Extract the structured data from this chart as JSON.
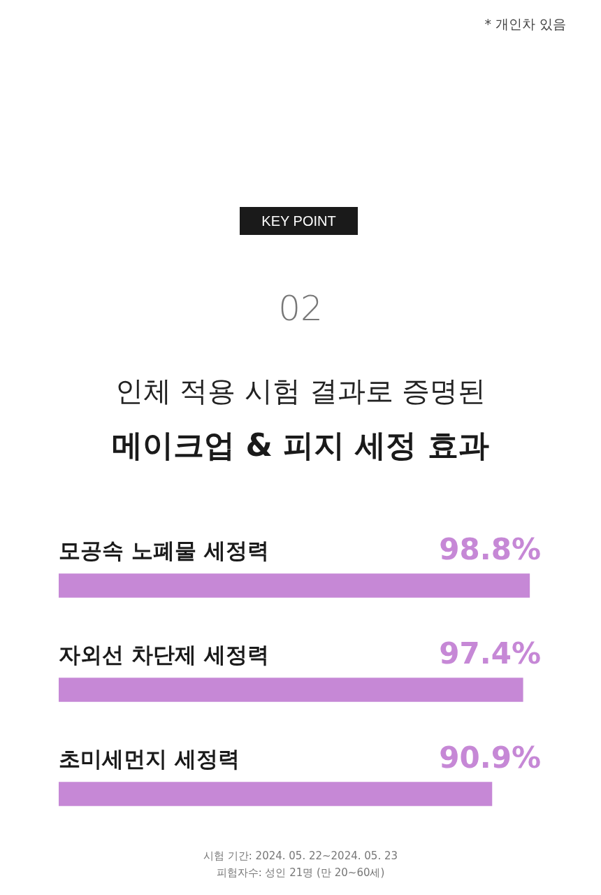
{
  "chart_data": {
    "type": "bar",
    "orientation": "horizontal",
    "title": "인체 적용 시험 결과로 증명된",
    "subtitle": "메이크업 & 피지 세정 효과",
    "annotations": [
      "* 개인차 있음",
      "KEY POINT",
      "02",
      "시험 기간: 2024. 05. 22~2024. 05. 23",
      "피험자수: 성인 21명 (만 20~60세)"
    ],
    "categories": [
      "모공속 노폐물 세정력",
      "자외선 차단제 세정력",
      "초미세먼지 세정력"
    ],
    "values": [
      98.8,
      97.4,
      90.9
    ],
    "value_labels": [
      "98.8%",
      "97.4%",
      "90.9%"
    ],
    "color": "#c688d6",
    "tick_labels": false
  }
}
